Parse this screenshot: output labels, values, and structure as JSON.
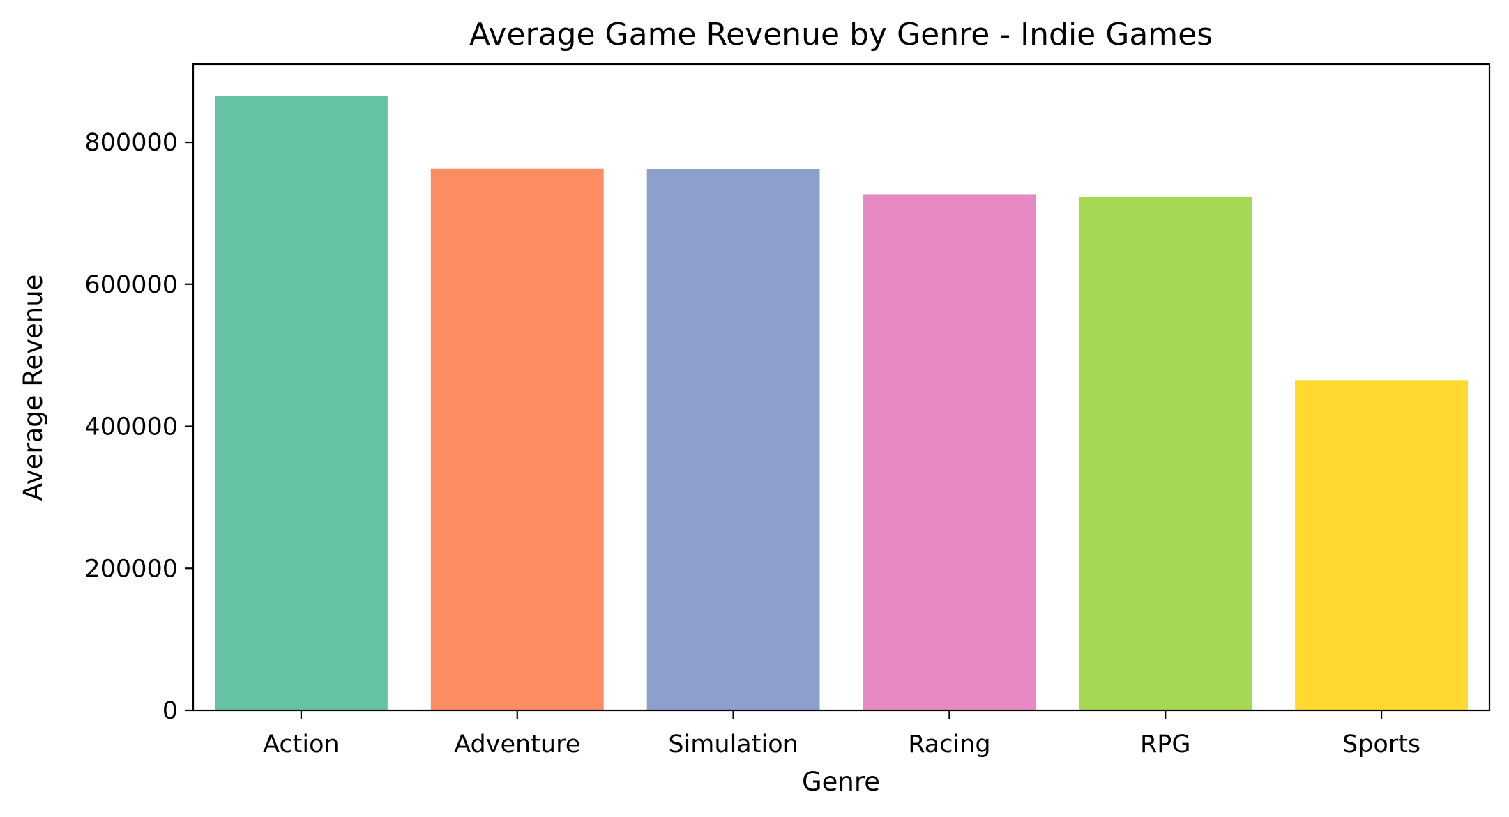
{
  "chart_data": {
    "type": "bar",
    "title": "Average Game Revenue by Genre - Indie Games",
    "xlabel": "Genre",
    "ylabel": "Average Revenue",
    "categories": [
      "Action",
      "Adventure",
      "Simulation",
      "Racing",
      "RPG",
      "Sports"
    ],
    "values": [
      865000,
      763000,
      762000,
      726000,
      723000,
      465000
    ],
    "colors": [
      "#66c2a5",
      "#fc8d62",
      "#8da0cb",
      "#e78ac3",
      "#a6d854",
      "#ffd92f"
    ],
    "ylim": [
      0,
      910000
    ],
    "yticks": [
      0,
      200000,
      400000,
      600000,
      800000
    ],
    "ytick_labels": [
      "0",
      "200000",
      "400000",
      "600000",
      "800000"
    ],
    "grid": false,
    "legend": "none"
  }
}
